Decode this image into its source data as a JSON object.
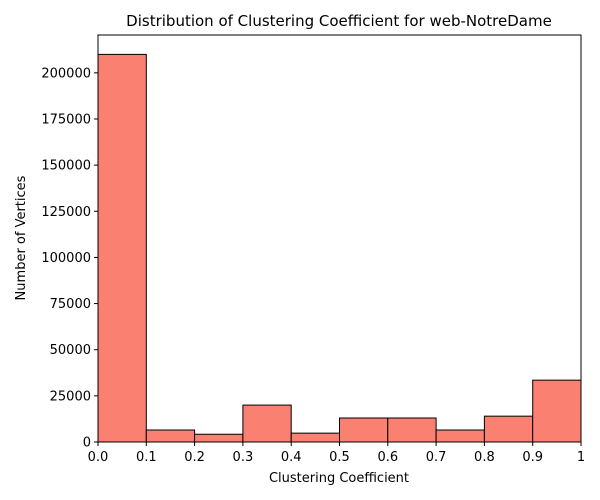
{
  "chart_data": {
    "type": "bar",
    "title": "Distribution of Clustering Coefficient for web-NotreDame",
    "xlabel": "Clustering Coefficient",
    "ylabel": "Number of Vertices",
    "bins": [
      {
        "start": 0.0,
        "end": 0.1,
        "value": 210000
      },
      {
        "start": 0.1,
        "end": 0.2,
        "value": 6500
      },
      {
        "start": 0.2,
        "end": 0.3,
        "value": 4200
      },
      {
        "start": 0.3,
        "end": 0.4,
        "value": 20000
      },
      {
        "start": 0.4,
        "end": 0.5,
        "value": 4800
      },
      {
        "start": 0.5,
        "end": 0.6,
        "value": 13000
      },
      {
        "start": 0.6,
        "end": 0.7,
        "value": 13000
      },
      {
        "start": 0.7,
        "end": 0.8,
        "value": 6500
      },
      {
        "start": 0.8,
        "end": 0.9,
        "value": 14000
      },
      {
        "start": 0.9,
        "end": 1.0,
        "value": 33500
      }
    ],
    "xlim": [
      0,
      1
    ],
    "ylim": [
      0,
      220500
    ],
    "xticks": [
      {
        "value": 0.0,
        "label": "0.0"
      },
      {
        "value": 0.1,
        "label": "0.1"
      },
      {
        "value": 0.2,
        "label": "0.2"
      },
      {
        "value": 0.3,
        "label": "0.3"
      },
      {
        "value": 0.4,
        "label": "0.4"
      },
      {
        "value": 0.5,
        "label": "0.5"
      },
      {
        "value": 0.6,
        "label": "0.6"
      },
      {
        "value": 0.7,
        "label": "0.7"
      },
      {
        "value": 0.8,
        "label": "0.8"
      },
      {
        "value": 0.9,
        "label": "0.9"
      },
      {
        "value": 1.0,
        "label": "1"
      }
    ],
    "yticks": [
      {
        "value": 0,
        "label": "0"
      },
      {
        "value": 25000,
        "label": "25000"
      },
      {
        "value": 50000,
        "label": "50000"
      },
      {
        "value": 75000,
        "label": "75000"
      },
      {
        "value": 100000,
        "label": "100000"
      },
      {
        "value": 125000,
        "label": "125000"
      },
      {
        "value": 150000,
        "label": "150000"
      },
      {
        "value": 175000,
        "label": "175000"
      },
      {
        "value": 200000,
        "label": "200000"
      }
    ],
    "bar_color": "#fa8072",
    "edge_color": "#000000",
    "grid": false
  }
}
